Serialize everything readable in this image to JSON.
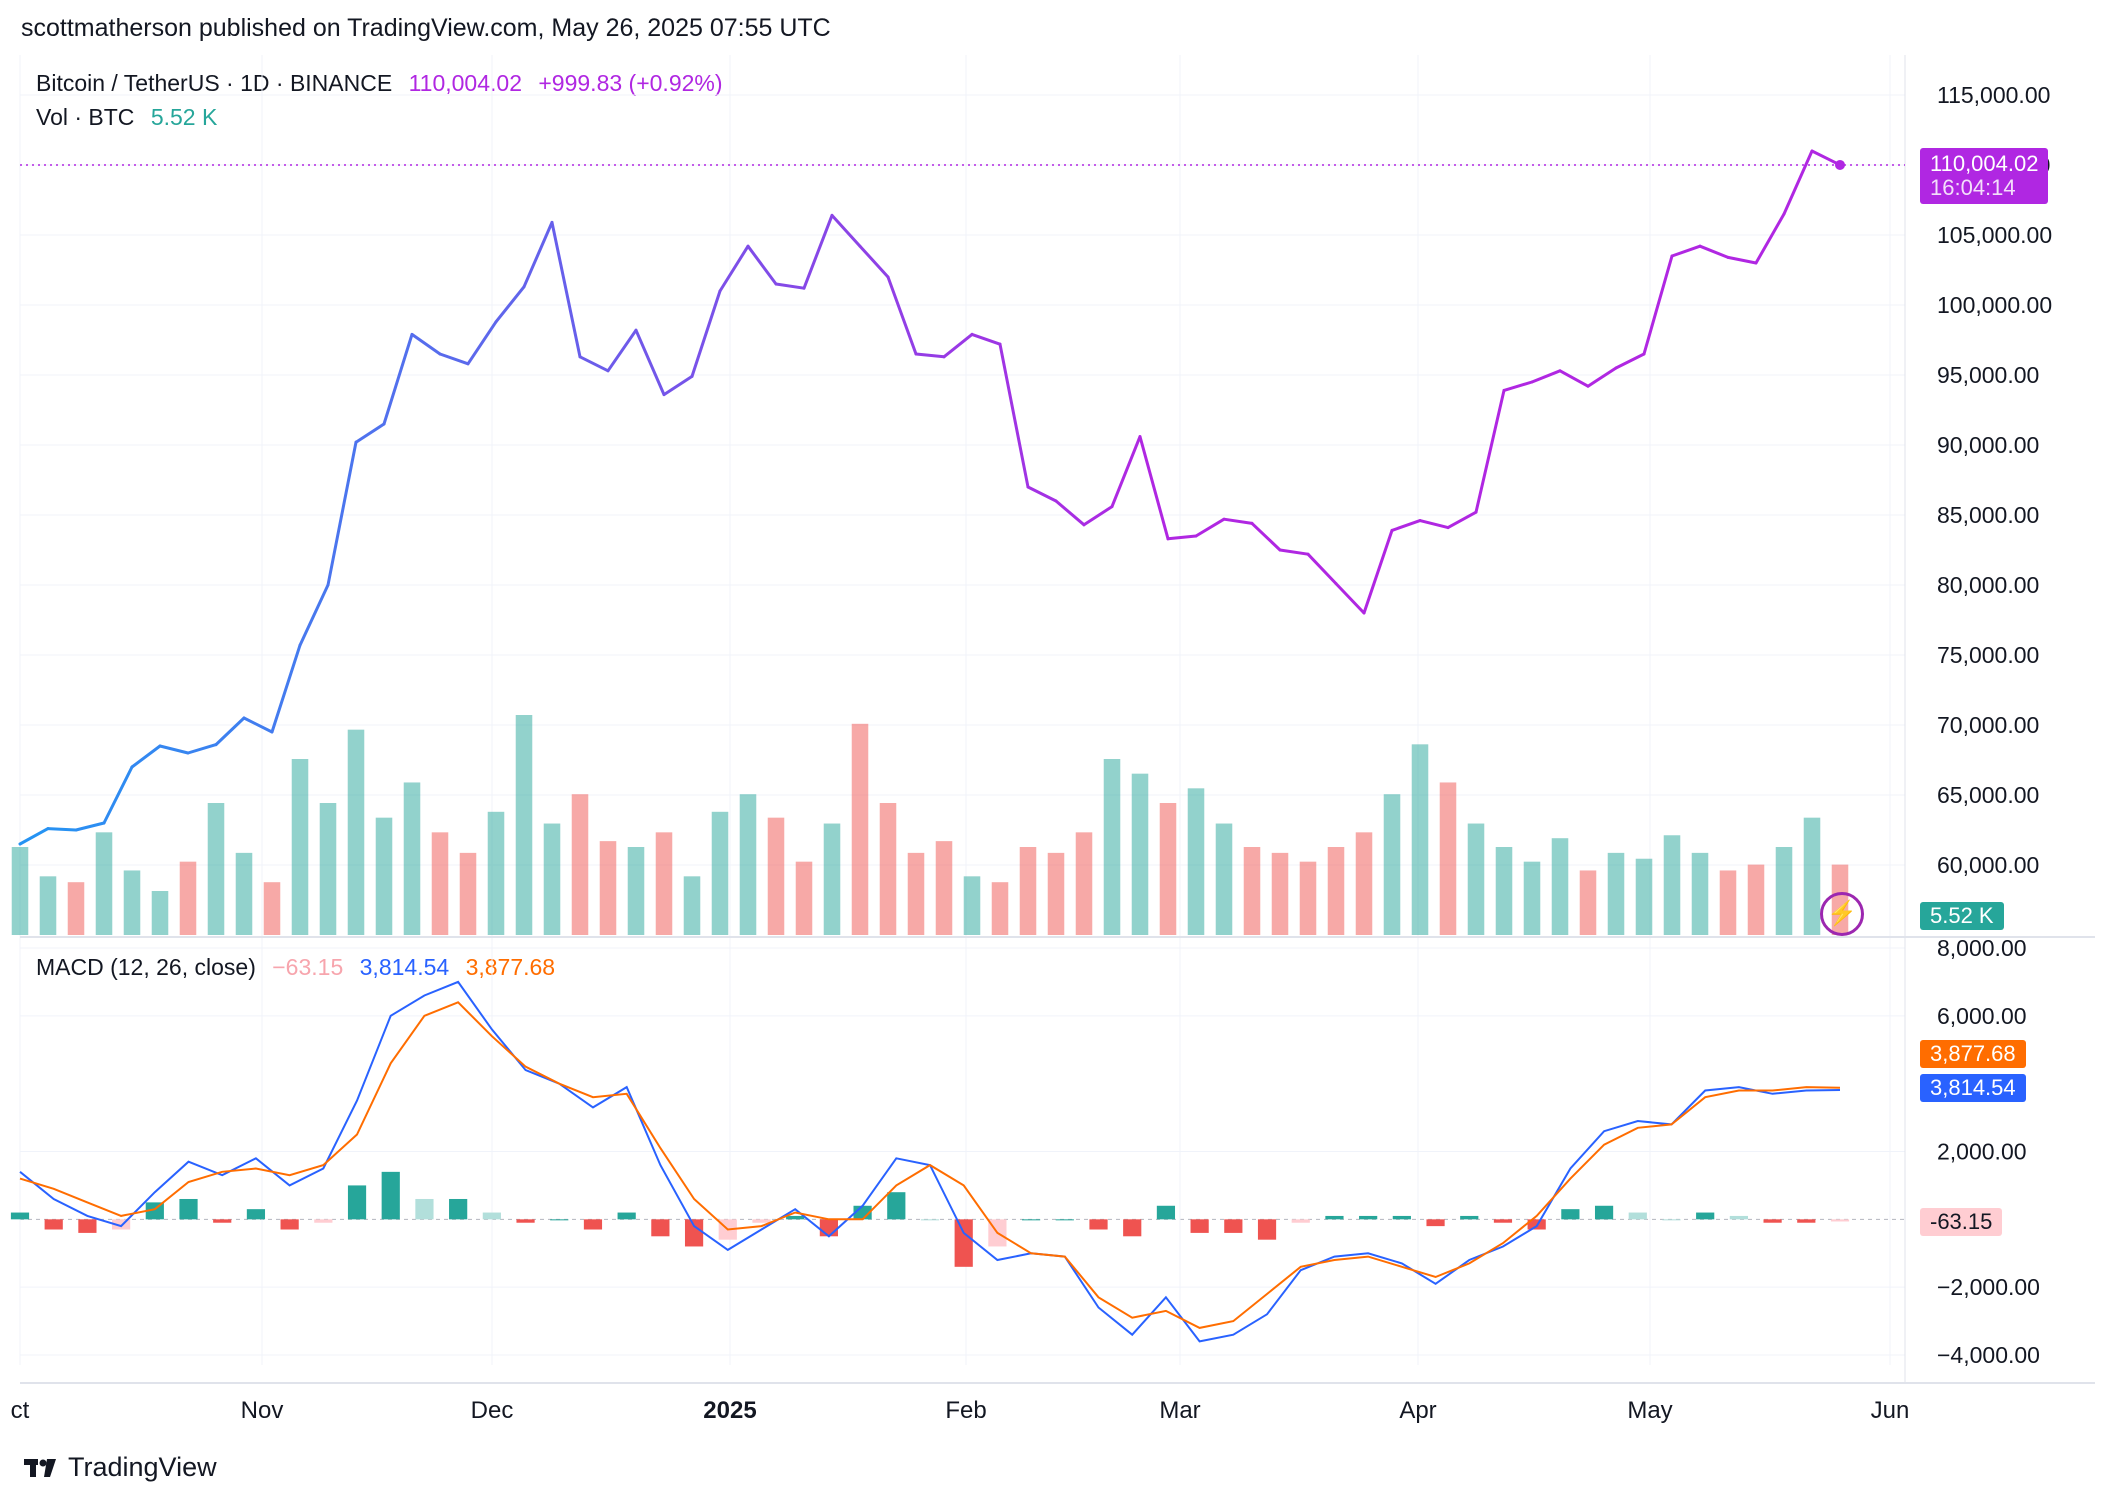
{
  "publisher_line": "scottmatherson published on TradingView.com, May 26, 2025 07:55 UTC",
  "legend": {
    "symbol": "Bitcoin / TetherUS · 1D · BINANCE",
    "price": "110,004.02",
    "change": "+999.83 (+0.92%)",
    "volume_label": "Vol · BTC",
    "volume_value": "5.52 K",
    "macd_label": "MACD (12, 26, close)",
    "macd_hist": "−63.15",
    "macd_line": "3,814.54",
    "macd_signal": "3,877.68"
  },
  "tags": {
    "price": "110,004.02",
    "countdown": "16:04:14",
    "volume": "5.52 K",
    "signal": "3,877.68",
    "macd": "3,814.54",
    "hist": "-63.15"
  },
  "brand": "TradingView",
  "colors": {
    "price_start": "#2196f3",
    "price_end": "#b027e2",
    "vol_up": "#26a69a",
    "vol_down": "#ef5350",
    "macd_line": "#2962ff",
    "signal_line": "#ff6d00",
    "hist_up_strong": "#26a69a",
    "hist_up_weak": "#b2dfdb",
    "hist_down_strong": "#ef5350",
    "hist_down_weak": "#ffcdd2"
  },
  "chart_data": [
    {
      "type": "line",
      "title": "Bitcoin / TetherUS · 1D · BINANCE",
      "x_ticks": [
        "ct",
        "Nov",
        "Dec",
        "2025",
        "Feb",
        "Mar",
        "Apr",
        "May",
        "Jun"
      ],
      "y_ticks": [
        "115,000.00",
        "110,000.00",
        "105,000.00",
        "100,000.00",
        "95,000.00",
        "90,000.00",
        "85,000.00",
        "80,000.00",
        "75,000.00",
        "70,000.00",
        "65,000.00",
        "60,000.00"
      ],
      "ylim": [
        55000,
        117500
      ],
      "series": [
        {
          "x_start": "2024-10-01",
          "interval_days": 7,
          "values": [
            61500,
            62600,
            62500,
            63000,
            67000,
            68500,
            68000,
            68600,
            70500,
            69500,
            75700,
            80000,
            90200,
            91500,
            97900,
            96500,
            95800,
            98800,
            101300,
            105900,
            96300,
            95300,
            98200,
            93600,
            94900,
            101000,
            104200,
            101500,
            101200,
            106400,
            104200,
            102000,
            96500,
            96300,
            97900,
            97200,
            87000,
            86000,
            84300,
            85600,
            90600,
            83300,
            83500,
            84700,
            84400,
            82500,
            82200,
            80100,
            78000,
            83900,
            84600,
            84100,
            85200,
            93900,
            94500,
            95300,
            94200,
            95500,
            96500,
            103500,
            104200,
            103400,
            103000,
            106500,
            111000,
            110004
          ]
        }
      ]
    },
    {
      "type": "bar",
      "title": "Vol · BTC",
      "series": [
        {
          "name": "Vol · BTC",
          "interval_days": 7,
          "values": [
            30,
            20,
            18,
            35,
            22,
            15,
            25,
            45,
            28,
            18,
            60,
            45,
            70,
            40,
            52,
            35,
            28,
            42,
            75,
            38,
            48,
            32,
            30,
            35,
            20,
            42,
            48,
            40,
            25,
            38,
            72,
            45,
            28,
            32,
            20,
            18,
            30,
            28,
            35,
            60,
            55,
            45,
            50,
            38,
            30,
            28,
            25,
            30,
            35,
            48,
            65,
            52,
            38,
            30,
            25,
            33,
            22,
            28,
            26,
            34,
            28,
            22,
            24,
            30,
            40,
            24
          ]
        }
      ]
    },
    {
      "type": "line",
      "title": "MACD (12, 26, close)",
      "y_ticks": [
        "8,000.00",
        "6,000.00",
        "2,000.00",
        "−2,000.00",
        "−4,000.00"
      ],
      "ylim": [
        -4000,
        8000
      ],
      "series": [
        {
          "name": "MACD",
          "interval_days": 7,
          "values": [
            1400,
            600,
            100,
            -200,
            800,
            1700,
            1300,
            1800,
            1000,
            1500,
            3500,
            6000,
            6600,
            7000,
            5600,
            4400,
            4000,
            3300,
            3900,
            1600,
            -200,
            -900,
            -300,
            300,
            -500,
            400,
            1800,
            1600,
            -400,
            -1200,
            -1000,
            -1100,
            -2600,
            -3400,
            -2300,
            -3600,
            -3400,
            -2800,
            -1500,
            -1100,
            -1000,
            -1300,
            -1900,
            -1200,
            -800,
            -200,
            1500,
            2600,
            2900,
            2800,
            3800,
            3900,
            3700,
            3800,
            3814
          ]
        },
        {
          "name": "Signal",
          "interval_days": 7,
          "values": [
            1200,
            900,
            500,
            100,
            300,
            1100,
            1400,
            1500,
            1300,
            1600,
            2500,
            4600,
            6000,
            6400,
            5400,
            4500,
            4000,
            3600,
            3700,
            2100,
            600,
            -300,
            -200,
            200,
            0,
            0,
            1000,
            1600,
            1000,
            -400,
            -1000,
            -1100,
            -2300,
            -2900,
            -2700,
            -3200,
            -3000,
            -2200,
            -1400,
            -1200,
            -1100,
            -1400,
            -1700,
            -1300,
            -700,
            100,
            1200,
            2200,
            2700,
            2800,
            3600,
            3800,
            3800,
            3900,
            3877
          ]
        },
        {
          "name": "Histogram",
          "interval_days": 7,
          "values": [
            200,
            -300,
            -400,
            -300,
            500,
            600,
            -100,
            300,
            -300,
            -100,
            1000,
            1400,
            600,
            600,
            200,
            -100,
            0,
            -300,
            200,
            -500,
            -800,
            -600,
            -100,
            100,
            -500,
            400,
            800,
            0,
            -1400,
            -800,
            0,
            0,
            -300,
            -500,
            400,
            -400,
            -400,
            -600,
            -100,
            100,
            100,
            100,
            -200,
            100,
            -100,
            -300,
            300,
            400,
            200,
            0,
            200,
            100,
            -100,
            -100,
            -63
          ]
        }
      ]
    }
  ]
}
